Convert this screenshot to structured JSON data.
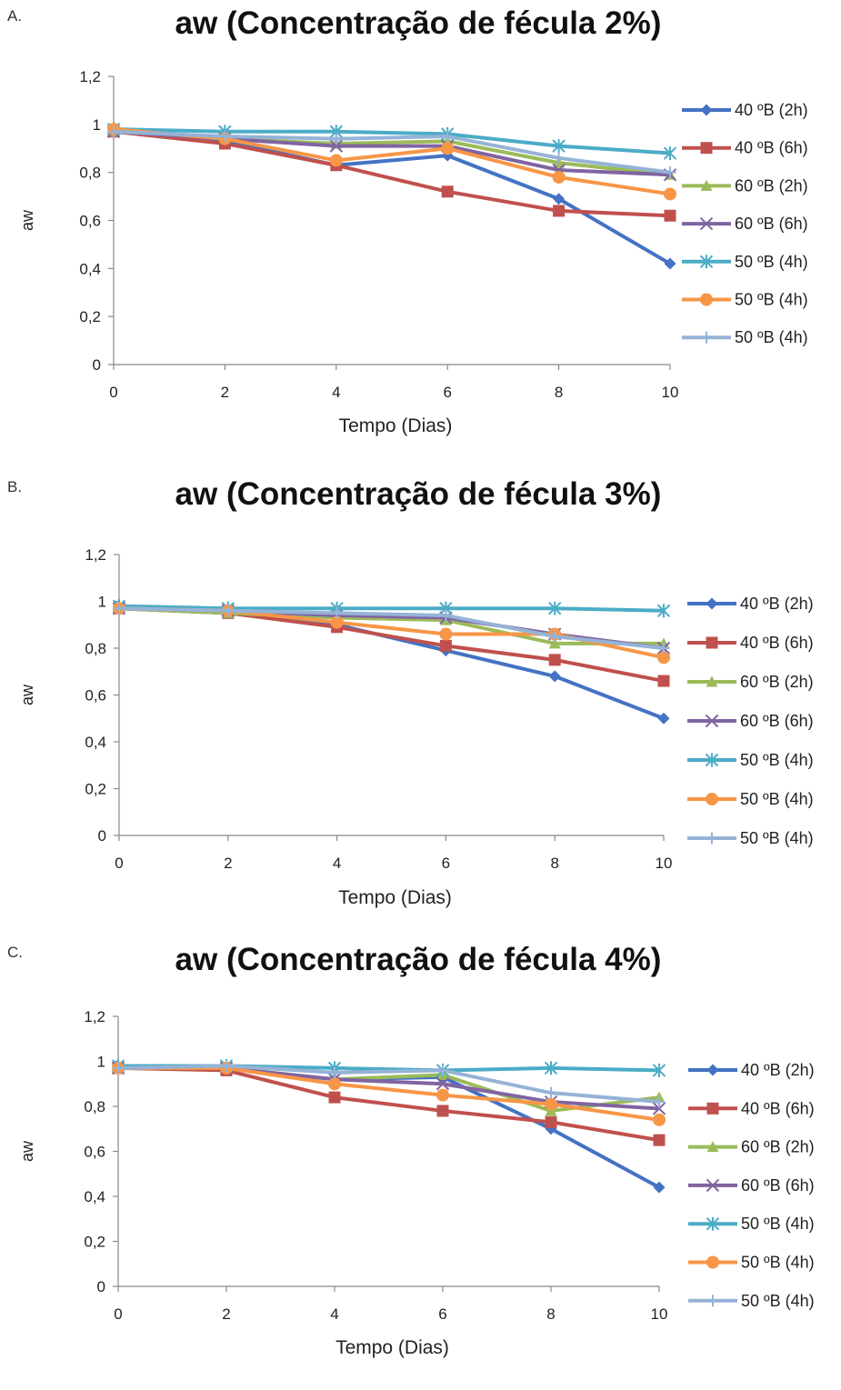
{
  "chart_data": [
    {
      "panel_label": "A.",
      "type": "line",
      "title": "aw (Concentração de fécula 2%)",
      "xlabel": "Tempo (Dias)",
      "ylabel": "aw",
      "x": [
        0,
        2,
        4,
        6,
        8,
        10
      ],
      "xticks": [
        "0",
        "2",
        "4",
        "6",
        "8",
        "10"
      ],
      "yticks": [
        "0",
        "0,2",
        "0,4",
        "0,6",
        "0,8",
        "1",
        "1,2"
      ],
      "ylim": [
        0,
        1.2
      ],
      "grid": false,
      "legend": "right",
      "series": [
        {
          "name": "40 ºB (2h)",
          "color": "#4472c4",
          "marker": "diamond",
          "values": [
            0.97,
            0.93,
            0.83,
            0.87,
            0.69,
            0.42
          ]
        },
        {
          "name": "40 ºB (6h)",
          "color": "#c0504d",
          "marker": "square",
          "values": [
            0.97,
            0.92,
            0.83,
            0.72,
            0.64,
            0.62
          ]
        },
        {
          "name": "60 ºB (2h)",
          "color": "#9bbb59",
          "marker": "triangle",
          "values": [
            0.97,
            0.94,
            0.92,
            0.93,
            0.84,
            0.79
          ]
        },
        {
          "name": "60 ºB (6h)",
          "color": "#8064a2",
          "marker": "x",
          "values": [
            0.97,
            0.94,
            0.91,
            0.91,
            0.81,
            0.79
          ]
        },
        {
          "name": "50 ºB (4h)",
          "color": "#4bacc6",
          "marker": "star",
          "values": [
            0.98,
            0.97,
            0.97,
            0.96,
            0.91,
            0.88
          ]
        },
        {
          "name": "50 ºB (4h)",
          "color": "#f79646",
          "marker": "circle",
          "values": [
            0.98,
            0.94,
            0.85,
            0.9,
            0.78,
            0.71
          ]
        },
        {
          "name": "50 ºB (4h)",
          "color": "#95b3d7",
          "marker": "plus",
          "values": [
            0.97,
            0.95,
            0.94,
            0.95,
            0.86,
            0.8
          ]
        }
      ]
    },
    {
      "panel_label": "B.",
      "type": "line",
      "title": "aw (Concentração de fécula 3%)",
      "xlabel": "Tempo (Dias)",
      "ylabel": "aw",
      "x": [
        0,
        2,
        4,
        6,
        8,
        10
      ],
      "xticks": [
        "0",
        "2",
        "4",
        "6",
        "8",
        "10"
      ],
      "yticks": [
        "0",
        "0,2",
        "0,4",
        "0,6",
        "0,8",
        "1",
        "1,2"
      ],
      "ylim": [
        0,
        1.2
      ],
      "grid": false,
      "legend": "right",
      "series": [
        {
          "name": "40 ºB (2h)",
          "color": "#4472c4",
          "marker": "diamond",
          "values": [
            0.97,
            0.95,
            0.9,
            0.79,
            0.68,
            0.5
          ]
        },
        {
          "name": "40 ºB (6h)",
          "color": "#c0504d",
          "marker": "square",
          "values": [
            0.97,
            0.95,
            0.89,
            0.81,
            0.75,
            0.66
          ]
        },
        {
          "name": "60 ºB (2h)",
          "color": "#9bbb59",
          "marker": "triangle",
          "values": [
            0.97,
            0.95,
            0.93,
            0.92,
            0.82,
            0.82
          ]
        },
        {
          "name": "60 ºB (6h)",
          "color": "#8064a2",
          "marker": "x",
          "values": [
            0.97,
            0.96,
            0.94,
            0.93,
            0.86,
            0.8
          ]
        },
        {
          "name": "50 ºB (4h)",
          "color": "#4bacc6",
          "marker": "star",
          "values": [
            0.98,
            0.97,
            0.97,
            0.97,
            0.97,
            0.96
          ]
        },
        {
          "name": "50 ºB (4h)",
          "color": "#f79646",
          "marker": "circle",
          "values": [
            0.97,
            0.96,
            0.91,
            0.86,
            0.86,
            0.76
          ]
        },
        {
          "name": "50 ºB (4h)",
          "color": "#95b3d7",
          "marker": "plus",
          "values": [
            0.97,
            0.96,
            0.95,
            0.94,
            0.85,
            0.8
          ]
        }
      ]
    },
    {
      "panel_label": "C.",
      "type": "line",
      "title": "aw (Concentração de fécula 4%)",
      "xlabel": "Tempo (Dias)",
      "ylabel": "aw",
      "x": [
        0,
        2,
        4,
        6,
        8,
        10
      ],
      "xticks": [
        "0",
        "2",
        "4",
        "6",
        "8",
        "10"
      ],
      "yticks": [
        "0",
        "0,2",
        "0,4",
        "0,6",
        "0,8",
        "1",
        "1,2"
      ],
      "ylim": [
        0,
        1.2
      ],
      "grid": false,
      "legend": "right",
      "series": [
        {
          "name": "40 ºB (2h)",
          "color": "#4472c4",
          "marker": "diamond",
          "values": [
            0.97,
            0.97,
            0.92,
            0.93,
            0.7,
            0.44
          ]
        },
        {
          "name": "40 ºB (6h)",
          "color": "#c0504d",
          "marker": "square",
          "values": [
            0.97,
            0.96,
            0.84,
            0.78,
            0.73,
            0.65
          ]
        },
        {
          "name": "60 ºB (2h)",
          "color": "#9bbb59",
          "marker": "triangle",
          "values": [
            0.97,
            0.97,
            0.92,
            0.94,
            0.78,
            0.84
          ]
        },
        {
          "name": "60 ºB (6h)",
          "color": "#8064a2",
          "marker": "x",
          "values": [
            0.97,
            0.97,
            0.92,
            0.9,
            0.82,
            0.79
          ]
        },
        {
          "name": "50 ºB (4h)",
          "color": "#4bacc6",
          "marker": "star",
          "values": [
            0.98,
            0.98,
            0.97,
            0.96,
            0.97,
            0.96
          ]
        },
        {
          "name": "50 ºB (4h)",
          "color": "#f79646",
          "marker": "circle",
          "values": [
            0.97,
            0.97,
            0.9,
            0.85,
            0.81,
            0.74
          ]
        },
        {
          "name": "50 ºB (4h)",
          "color": "#95b3d7",
          "marker": "plus",
          "values": [
            0.97,
            0.98,
            0.95,
            0.96,
            0.86,
            0.82
          ]
        }
      ]
    }
  ]
}
